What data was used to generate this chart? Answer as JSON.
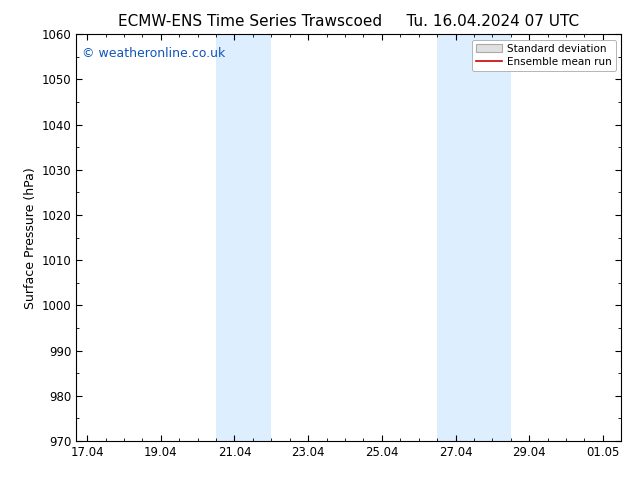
{
  "title_left": "ECMW-ENS Time Series Trawscoed",
  "title_right": "Tu. 16.04.2024 07 UTC",
  "ylabel": "Surface Pressure (hPa)",
  "ylim": [
    970,
    1060
  ],
  "yticks": [
    970,
    980,
    990,
    1000,
    1010,
    1020,
    1030,
    1040,
    1050,
    1060
  ],
  "xtick_labels": [
    "17.04",
    "19.04",
    "21.04",
    "23.04",
    "25.04",
    "27.04",
    "29.04",
    "01.05"
  ],
  "xtick_positions": [
    0.0,
    2.0,
    4.0,
    6.0,
    8.0,
    10.0,
    12.0,
    14.0
  ],
  "xlim": [
    -0.3,
    14.5
  ],
  "shaded_bands": [
    {
      "x_start": 3.5,
      "x_end": 5.0
    },
    {
      "x_start": 9.5,
      "x_end": 11.5
    }
  ],
  "shade_color": "#ddeeff",
  "shade_alpha": 1.0,
  "watermark_text": "© weatheronline.co.uk",
  "watermark_color": "#1155bb",
  "watermark_fontsize": 9,
  "legend_std_label": "Standard deviation",
  "legend_mean_label": "Ensemble mean run",
  "legend_std_facecolor": "#e0e0e0",
  "legend_std_edgecolor": "#aaaaaa",
  "legend_mean_color": "#cc0000",
  "bg_color": "#ffffff",
  "title_fontsize": 11,
  "axis_fontsize": 9,
  "tick_fontsize": 8.5
}
